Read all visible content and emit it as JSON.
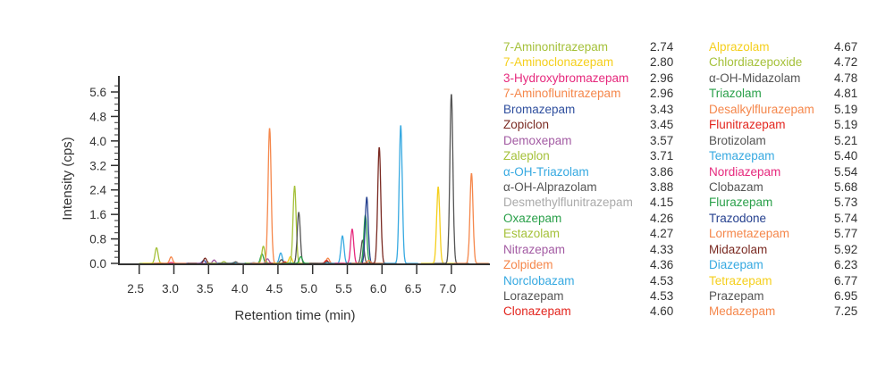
{
  "chart_data": {
    "type": "line",
    "xlabel": "Retention time (min)",
    "ylabel": "Intensity (cps)",
    "xlim": [
      2.21,
      7.55
    ],
    "ylim": [
      0,
      5.6
    ],
    "xticks": [
      "2.5",
      "3.0",
      "3.5",
      "4.0",
      "4.5",
      "5.0",
      "5.5",
      "6.0",
      "6.5",
      "7.0"
    ],
    "yticks": [
      "0.0",
      "0.8",
      "1.6",
      "2.4",
      "3.2",
      "4.0",
      "4.8",
      "5.6"
    ],
    "grid": false,
    "legend_placement": "right",
    "series": [
      {
        "name": "7-Aminonitrazepam",
        "rt": "2.74",
        "color": "#a5c13a",
        "apex": 2.75,
        "intensity": 0.51
      },
      {
        "name": "7-Aminoclonazepam",
        "rt": "2.80",
        "color": "#f5cf1c",
        "apex": 2.8,
        "intensity": 0.02
      },
      {
        "name": "3-Hydroxybromazepam",
        "rt": "2.96",
        "color": "#e6297d",
        "apex": 2.96,
        "intensity": 0.03
      },
      {
        "name": "7-Aminoflunitrazepam",
        "rt": "2.96",
        "color": "#f5874b",
        "apex": 2.96,
        "intensity": 0.21
      },
      {
        "name": "Bromazepam",
        "rt": "3.43",
        "color": "#2f4f9e",
        "apex": 3.43,
        "intensity": 0.1
      },
      {
        "name": "Zopiclon",
        "rt": "3.45",
        "color": "#7a2a22",
        "apex": 3.45,
        "intensity": 0.17
      },
      {
        "name": "Demoxepam",
        "rt": "3.57",
        "color": "#a35ba3",
        "apex": 3.58,
        "intensity": 0.11
      },
      {
        "name": "Zaleplon",
        "rt": "3.71",
        "color": "#a5c13a",
        "apex": 3.72,
        "intensity": 0.06
      },
      {
        "name": "α-OH-Triazolam",
        "rt": "3.86",
        "color": "#36a9e1",
        "apex": 3.87,
        "intensity": 0.03
      },
      {
        "name": "α-OH-Alprazolam",
        "rt": "3.88",
        "color": "#555555",
        "apex": 3.89,
        "intensity": 0.05
      },
      {
        "name": "Desmethylflunitrazepam",
        "rt": "4.15",
        "color": "#aaaaaa",
        "apex": 4.15,
        "intensity": 0.03
      },
      {
        "name": "Oxazepam",
        "rt": "4.26",
        "color": "#2aa04a",
        "apex": 4.27,
        "intensity": 0.31
      },
      {
        "name": "Estazolam",
        "rt": "4.27",
        "color": "#a5c13a",
        "apex": 4.29,
        "intensity": 0.56
      },
      {
        "name": "Nitrazepam",
        "rt": "4.33",
        "color": "#a35ba3",
        "apex": 4.35,
        "intensity": 0.15
      },
      {
        "name": "Zolpidem",
        "rt": "4.36",
        "color": "#f5874b",
        "apex": 4.38,
        "intensity": 4.42
      },
      {
        "name": "Norclobazam",
        "rt": "4.53",
        "color": "#36a9e1",
        "apex": 4.54,
        "intensity": 0.34
      },
      {
        "name": "Lorazepam",
        "rt": "4.53",
        "color": "#555555",
        "apex": 4.55,
        "intensity": 0.12
      },
      {
        "name": "Clonazepam",
        "rt": "4.60",
        "color": "#e3261f",
        "apex": 4.6,
        "intensity": 0.05
      },
      {
        "name": "Alprazolam",
        "rt": "4.67",
        "color": "#f5cf1c",
        "apex": 4.68,
        "intensity": 0.22
      },
      {
        "name": "Chlordiazepoxide",
        "rt": "4.72",
        "color": "#a5c13a",
        "apex": 4.74,
        "intensity": 2.53
      },
      {
        "name": "α-OH-Midazolam",
        "rt": "4.78",
        "color": "#555555",
        "apex": 4.8,
        "intensity": 1.67
      },
      {
        "name": "Triazolam",
        "rt": "4.81",
        "color": "#2aa04a",
        "apex": 4.83,
        "intensity": 0.22
      },
      {
        "name": "Desalkylflurazepam",
        "rt": "5.19",
        "color": "#f5874b",
        "apex": 5.22,
        "intensity": 0.17
      },
      {
        "name": "Flunitrazepam",
        "rt": "5.19",
        "color": "#e3261f",
        "apex": 5.2,
        "intensity": 0.1
      },
      {
        "name": "Brotizolam",
        "rt": "5.21",
        "color": "#555555",
        "apex": 5.21,
        "intensity": 0.05
      },
      {
        "name": "Temazepam",
        "rt": "5.40",
        "color": "#36a9e1",
        "apex": 5.43,
        "intensity": 0.9
      },
      {
        "name": "Nordiazepam",
        "rt": "5.54",
        "color": "#e6297d",
        "apex": 5.57,
        "intensity": 1.12
      },
      {
        "name": "Clobazam",
        "rt": "5.68",
        "color": "#555555",
        "apex": 5.72,
        "intensity": 0.76
      },
      {
        "name": "Flurazepam",
        "rt": "5.73",
        "color": "#2aa04a",
        "apex": 5.76,
        "intensity": 1.58
      },
      {
        "name": "Trazodone",
        "rt": "5.74",
        "color": "#26418f",
        "apex": 5.78,
        "intensity": 2.16
      },
      {
        "name": "Lormetazepam",
        "rt": "5.77",
        "color": "#f5874b",
        "apex": 5.81,
        "intensity": 0.1
      },
      {
        "name": "Midazolam",
        "rt": "5.92",
        "color": "#7a2a22",
        "apex": 5.96,
        "intensity": 3.79
      },
      {
        "name": "Diazepam",
        "rt": "6.23",
        "color": "#36a9e1",
        "apex": 6.27,
        "intensity": 4.51
      },
      {
        "name": "Tetrazepam",
        "rt": "6.77",
        "color": "#f5cf1c",
        "apex": 6.81,
        "intensity": 2.5
      },
      {
        "name": "Prazepam",
        "rt": "6.95",
        "color": "#555555",
        "apex": 7.0,
        "intensity": 5.53
      },
      {
        "name": "Medazepam",
        "rt": "7.25",
        "color": "#f5874b",
        "apex": 7.29,
        "intensity": 2.94
      }
    ]
  }
}
